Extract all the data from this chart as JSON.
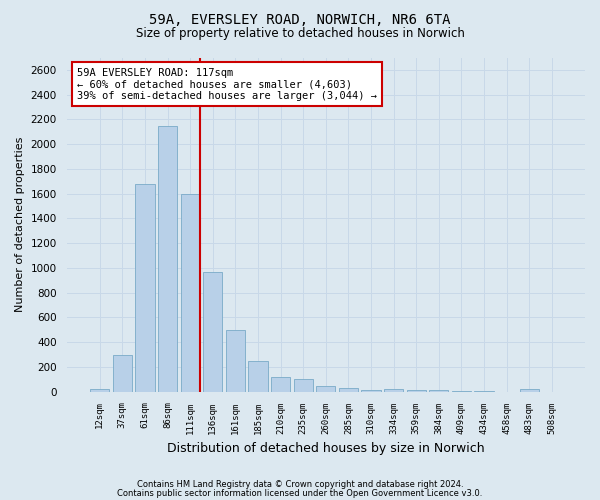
{
  "title_line1": "59A, EVERSLEY ROAD, NORWICH, NR6 6TA",
  "title_line2": "Size of property relative to detached houses in Norwich",
  "xlabel": "Distribution of detached houses by size in Norwich",
  "ylabel": "Number of detached properties",
  "categories": [
    "12sqm",
    "37sqm",
    "61sqm",
    "86sqm",
    "111sqm",
    "136sqm",
    "161sqm",
    "185sqm",
    "210sqm",
    "235sqm",
    "260sqm",
    "285sqm",
    "310sqm",
    "334sqm",
    "359sqm",
    "384sqm",
    "409sqm",
    "434sqm",
    "458sqm",
    "483sqm",
    "508sqm"
  ],
  "values": [
    20,
    300,
    1680,
    2150,
    1600,
    970,
    500,
    245,
    120,
    100,
    45,
    30,
    15,
    20,
    15,
    10,
    5,
    5,
    0,
    20,
    0
  ],
  "bar_color": "#b8d0e8",
  "bar_edge_color": "#7aaac8",
  "vline_x_index": 4,
  "vline_color": "#cc0000",
  "annotation_text": "59A EVERSLEY ROAD: 117sqm\n← 60% of detached houses are smaller (4,603)\n39% of semi-detached houses are larger (3,044) →",
  "annotation_box_color": "#ffffff",
  "annotation_box_edge_color": "#cc0000",
  "ylim": [
    0,
    2700
  ],
  "yticks": [
    0,
    200,
    400,
    600,
    800,
    1000,
    1200,
    1400,
    1600,
    1800,
    2000,
    2200,
    2400,
    2600
  ],
  "grid_color": "#c8d8e8",
  "background_color": "#dce8f0",
  "footer_line1": "Contains HM Land Registry data © Crown copyright and database right 2024.",
  "footer_line2": "Contains public sector information licensed under the Open Government Licence v3.0."
}
